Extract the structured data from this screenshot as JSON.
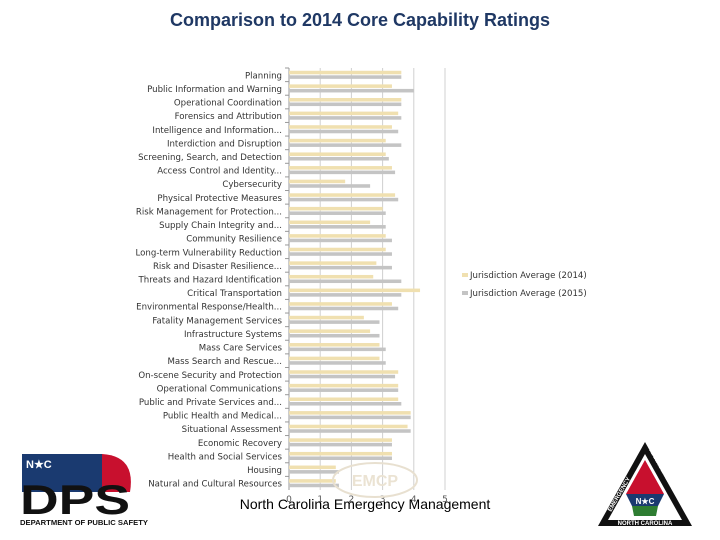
{
  "chart_data": {
    "type": "bar",
    "orientation": "horizontal",
    "title": "Comparison to 2014 Core Capability Ratings",
    "categories": [
      "Planning",
      "Public Information and Warning",
      "Operational Coordination",
      "Forensics and Attribution",
      "Intelligence and Information...",
      "Interdiction and Disruption",
      "Screening, Search, and Detection",
      "Access Control and Identity...",
      "Cybersecurity",
      "Physical Protective Measures",
      "Risk Management for Protection...",
      "Supply Chain Integrity and...",
      "Community Resilience",
      "Long-term Vulnerability Reduction",
      "Risk and Disaster Resilience...",
      "Threats and Hazard Identification",
      "Critical Transportation",
      "Environmental Response/Health...",
      "Fatality Management Services",
      "Infrastructure Systems",
      "Mass Care Services",
      "Mass Search and Rescue...",
      "On-scene Security and Protection",
      "Operational  Communications",
      "Public and Private Services and...",
      "Public Health and Medical...",
      "Situational Assessment",
      "Economic Recovery",
      "Health and Social Services",
      "Housing",
      "Natural and Cultural Resources"
    ],
    "series": [
      {
        "name": "Jurisdiction Average (2014)",
        "color": "#f0e0b0",
        "values": [
          3.6,
          3.3,
          3.6,
          3.5,
          3.3,
          3.1,
          3.1,
          3.3,
          1.8,
          3.4,
          3.0,
          2.6,
          3.1,
          3.1,
          2.8,
          2.7,
          4.2,
          3.3,
          2.4,
          2.6,
          2.9,
          2.9,
          3.5,
          3.5,
          3.5,
          3.9,
          3.8,
          3.3,
          3.3,
          1.5,
          1.5
        ]
      },
      {
        "name": "Jurisdiction Average (2015)",
        "color": "#c4c4c4",
        "values": [
          3.6,
          4.0,
          3.6,
          3.6,
          3.5,
          3.6,
          3.2,
          3.4,
          2.6,
          3.5,
          3.1,
          3.1,
          3.3,
          3.3,
          3.3,
          3.6,
          3.6,
          3.5,
          2.9,
          2.9,
          3.1,
          3.1,
          3.4,
          3.5,
          3.6,
          3.9,
          3.9,
          3.3,
          3.3,
          1.6,
          1.6
        ]
      }
    ],
    "xlim": [
      0,
      5
    ],
    "xticks": [
      "0",
      "1",
      "2",
      "3",
      "4",
      "5"
    ],
    "grid": true,
    "legend_position": "right"
  },
  "footer": "North Carolina Emergency Management",
  "logos": {
    "dps_text": "DPS",
    "dps_nc": "N★C",
    "dps_caption": "DEPARTMENT OF PUBLIC SAFETY",
    "ncem_top": "EMERGENCY",
    "ncem_right": "MANAGEMENT",
    "ncem_bottom": "NORTH CAROLINA",
    "ncem_nc": "N★C",
    "watermark": "EMCP"
  }
}
